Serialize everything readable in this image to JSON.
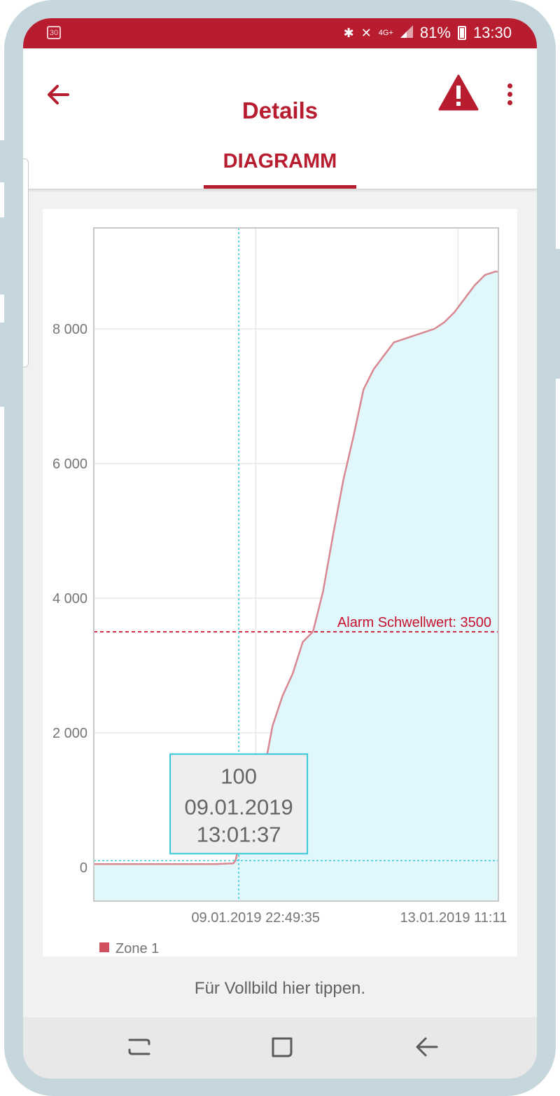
{
  "status_bar": {
    "calendar_day": "30",
    "icons": [
      "bluetooth-icon",
      "mute-vibrate-icon",
      "network-4g-icon",
      "signal-icon",
      "battery-icon"
    ],
    "network": "4G+",
    "battery": "81%",
    "time": "13:30"
  },
  "app_bar": {
    "title": "Details",
    "back_icon": "arrow-left-icon",
    "alarm_icon": "warning-triangle-icon",
    "menu_icon": "more-vertical-icon"
  },
  "tabs": [
    {
      "label": "DIAGRAMM",
      "selected": true
    }
  ],
  "colors": {
    "brand": "#b71c2f",
    "series_line": "#d98892",
    "series_fill": "#e0f7fb",
    "crosshair": "#36c7d8",
    "alarm_line": "#c8102e"
  },
  "chart_data": {
    "type": "area",
    "y_ticks": [
      "0",
      "2 000",
      "4 000",
      "6 000",
      "8 000"
    ],
    "x_tick_labels": [
      "09.01.2019 22:49:35",
      "13.01.2019 11:11"
    ],
    "x_ticks": [
      2.4,
      5.4
    ],
    "xlim": [
      0,
      6.0
    ],
    "ylim": [
      -500,
      9500
    ],
    "grid": true,
    "legend_position": "bottom-left",
    "series": [
      {
        "name": "Zone 1",
        "x": [
          0,
          0.6,
          1.2,
          1.8,
          2.07,
          2.1,
          2.15,
          2.3,
          2.5,
          2.65,
          2.8,
          2.95,
          3.1,
          3.25,
          3.4,
          3.55,
          3.7,
          3.85,
          4.0,
          4.15,
          4.3,
          4.45,
          4.6,
          4.75,
          4.9,
          5.05,
          5.2,
          5.35,
          5.5,
          5.65,
          5.8,
          5.95,
          6.0
        ],
        "y": [
          50,
          50,
          50,
          50,
          60,
          100,
          300,
          700,
          1300,
          2100,
          2550,
          2880,
          3350,
          3500,
          4100,
          4950,
          5750,
          6400,
          7100,
          7400,
          7600,
          7800,
          7850,
          7900,
          7950,
          8000,
          8100,
          8250,
          8450,
          8650,
          8800,
          8850,
          8850
        ]
      }
    ],
    "threshold": {
      "value": 3500,
      "label": "Alarm Schwellwert: 3500"
    },
    "tooltip": {
      "value": "100",
      "date": "09.01.2019",
      "time": "13:01:37",
      "x": 2.15,
      "y": 100
    }
  },
  "footer_hint": "Für Vollbild hier tippen.",
  "nav_bar": [
    "recent-apps-icon",
    "home-icon",
    "back-icon"
  ]
}
